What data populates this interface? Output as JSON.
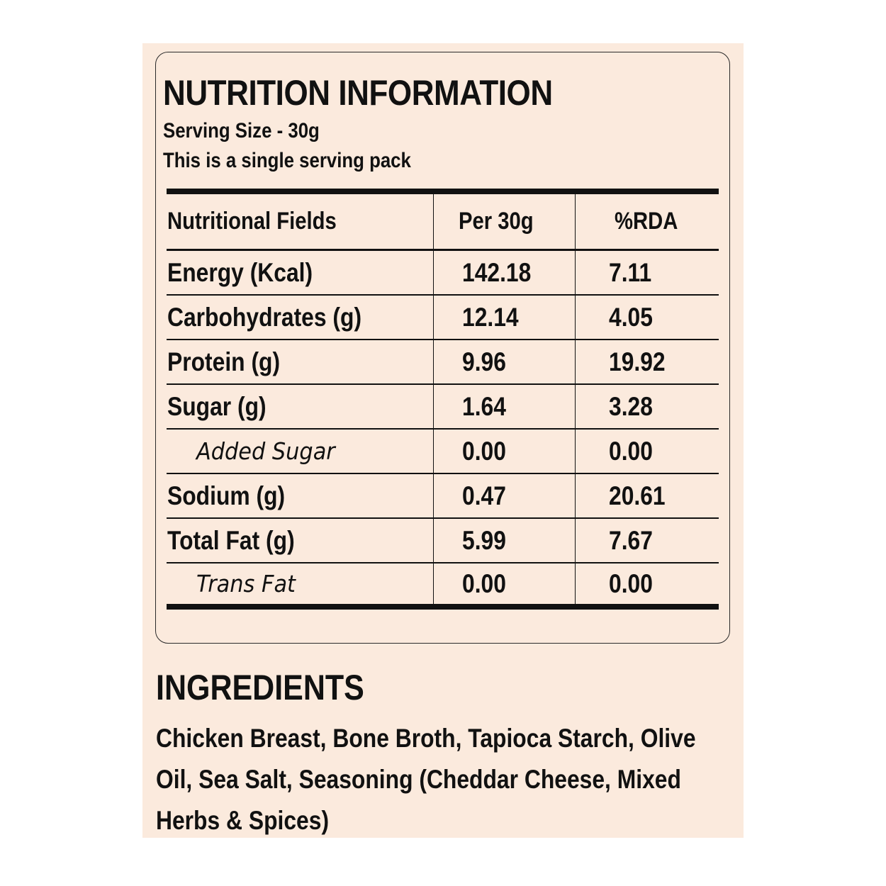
{
  "nutrition": {
    "title": "NUTRITION INFORMATION",
    "serving_size": "Serving Size - 30g",
    "serving_note": "This is a single serving pack",
    "columns": [
      "Nutritional Fields",
      "Per 30g",
      "%RDA"
    ],
    "rows": [
      {
        "field": "Energy (Kcal)",
        "per": "142.18",
        "rda": "7.11"
      },
      {
        "field": "Carbohydrates (g)",
        "per": "12.14",
        "rda": "4.05"
      },
      {
        "field": "Protein (g)",
        "per": "9.96",
        "rda": "19.92"
      },
      {
        "field": "Sugar (g)",
        "per": "1.64",
        "rda": "3.28"
      },
      {
        "field": "Added Sugar",
        "per": "0.00",
        "rda": "0.00"
      },
      {
        "field": "Sodium (g)",
        "per": "0.47",
        "rda": "20.61"
      },
      {
        "field": "Total Fat (g)",
        "per": "5.99",
        "rda": "7.67"
      },
      {
        "field": "Trans Fat",
        "per": "0.00",
        "rda": "0.00"
      }
    ]
  },
  "ingredients": {
    "title": "INGREDIENTS",
    "text": "Chicken Breast, Bone Broth, Tapioca Starch, Olive Oil, Sea Salt, Seasoning (Cheddar Cheese, Mixed Herbs & Spices)"
  },
  "colors": {
    "background": "#fbeadd",
    "text": "#111111"
  }
}
